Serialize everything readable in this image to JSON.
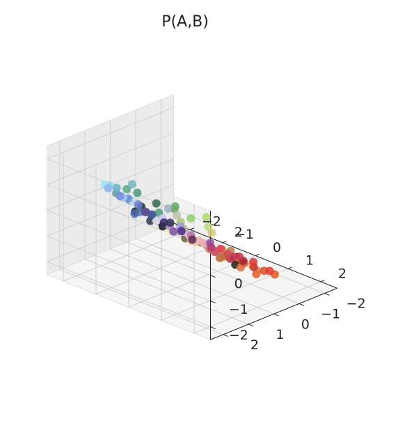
{
  "chart_data": {
    "type": "scatter3d",
    "title": "P(A,B)",
    "xlabel": "",
    "ylabel": "",
    "zlabel": "",
    "xlim": [
      -2.5,
      2.5
    ],
    "ylim": [
      -2.5,
      2.5
    ],
    "zlim": [
      -2.5,
      2.5
    ],
    "x_ticks": [
      "−2",
      "−1",
      "0",
      "1",
      "2"
    ],
    "y_ticks": [
      "−2",
      "−1",
      "0",
      "1",
      "2"
    ],
    "z_ticks": [
      "−2",
      "−1",
      "0",
      "1",
      "2"
    ],
    "grid": true,
    "x_tick_values": [
      -2,
      -1,
      0,
      1,
      2
    ],
    "y_tick_values": [
      -2,
      -1,
      0,
      1,
      2
    ],
    "z_tick_values": [
      -2,
      -1,
      0,
      1,
      2
    ],
    "points": [
      {
        "x": -0.6,
        "y": 1.8,
        "z": 1.5,
        "color": "#5fa98a"
      },
      {
        "x": -0.2,
        "y": 1.9,
        "z": 1.6,
        "color": "#4f9a80"
      },
      {
        "x": 0.3,
        "y": 1.8,
        "z": 1.4,
        "color": "#2f6a52"
      },
      {
        "x": 0.8,
        "y": 1.7,
        "z": 1.5,
        "color": "#62b070"
      },
      {
        "x": 1.2,
        "y": 1.6,
        "z": 1.2,
        "color": "#90cf70"
      },
      {
        "x": 1.6,
        "y": 1.5,
        "z": 1.4,
        "color": "#a8d86a"
      },
      {
        "x": -1.0,
        "y": 1.7,
        "z": 1.1,
        "color": "#5a9ea0"
      },
      {
        "x": 0.0,
        "y": 2.0,
        "z": 1.2,
        "color": "#1a3a30"
      },
      {
        "x": 0.6,
        "y": 2.0,
        "z": 0.9,
        "color": "#3f8a5a"
      },
      {
        "x": 1.0,
        "y": 1.9,
        "z": 0.7,
        "color": "#7ab060"
      },
      {
        "x": 1.4,
        "y": 1.8,
        "z": 0.5,
        "color": "#b8d470"
      },
      {
        "x": 1.8,
        "y": 1.6,
        "z": 0.3,
        "color": "#d0d88a"
      },
      {
        "x": 2.0,
        "y": 1.4,
        "z": 0.0,
        "color": "#c8c060"
      },
      {
        "x": 1.7,
        "y": 1.0,
        "z": 0.0,
        "color": "#9aa838"
      },
      {
        "x": -1.6,
        "y": 1.2,
        "z": 0.9,
        "color": "#8ad6e8"
      },
      {
        "x": -1.9,
        "y": 1.0,
        "z": 0.7,
        "color": "#a0e4f4"
      },
      {
        "x": -1.3,
        "y": 1.3,
        "z": 1.0,
        "color": "#6ab2c8"
      },
      {
        "x": -0.8,
        "y": 1.4,
        "z": 0.8,
        "color": "#4f8a9a"
      },
      {
        "x": -0.5,
        "y": 1.6,
        "z": 0.6,
        "color": "#14262a"
      },
      {
        "x": 0.1,
        "y": 1.5,
        "z": 0.5,
        "color": "#3a5a40"
      },
      {
        "x": 0.4,
        "y": 1.4,
        "z": 0.2,
        "color": "#f4f0c0"
      },
      {
        "x": 0.8,
        "y": 1.3,
        "z": 0.1,
        "color": "#6a6038"
      },
      {
        "x": 1.2,
        "y": 1.2,
        "z": 0.1,
        "color": "#a08a40"
      },
      {
        "x": -2.1,
        "y": 0.6,
        "z": 0.3,
        "color": "#8cb6f0"
      },
      {
        "x": -1.8,
        "y": 0.4,
        "z": 0.0,
        "color": "#a6c8f4"
      },
      {
        "x": -1.5,
        "y": 0.6,
        "z": 0.2,
        "color": "#6a92d8"
      },
      {
        "x": -1.2,
        "y": 0.8,
        "z": 0.3,
        "color": "#c4dcf4"
      },
      {
        "x": -0.9,
        "y": 0.9,
        "z": 0.1,
        "color": "#5a7aa8"
      },
      {
        "x": -0.5,
        "y": 1.0,
        "z": 0.0,
        "color": "#30384a"
      },
      {
        "x": -0.2,
        "y": 0.9,
        "z": -0.1,
        "color": "#1a1a20"
      },
      {
        "x": 0.2,
        "y": 0.9,
        "z": -0.1,
        "color": "#e4d8c8"
      },
      {
        "x": 0.6,
        "y": 0.8,
        "z": -0.3,
        "color": "#f0c8a0"
      },
      {
        "x": 1.0,
        "y": 0.7,
        "z": -0.3,
        "color": "#e0b070"
      },
      {
        "x": 1.4,
        "y": 0.6,
        "z": -0.5,
        "color": "#f0a850"
      },
      {
        "x": 1.8,
        "y": 0.5,
        "z": -0.6,
        "color": "#f5b860"
      },
      {
        "x": 2.0,
        "y": 0.2,
        "z": -0.8,
        "color": "#ffa830"
      },
      {
        "x": -2.2,
        "y": 0.0,
        "z": -0.3,
        "color": "#7e8ee0"
      },
      {
        "x": -1.8,
        "y": -0.2,
        "z": -0.5,
        "color": "#6a7ad0"
      },
      {
        "x": -1.3,
        "y": -0.1,
        "z": -0.6,
        "color": "#4a5aa8"
      },
      {
        "x": -0.9,
        "y": 0.0,
        "z": -0.5,
        "color": "#ccc6f0"
      },
      {
        "x": -0.6,
        "y": 0.1,
        "z": -0.6,
        "color": "#c2a0c8"
      },
      {
        "x": -0.2,
        "y": 0.0,
        "z": -0.7,
        "color": "#d0c0c8"
      },
      {
        "x": 0.2,
        "y": 0.0,
        "z": -0.8,
        "color": "#e8b8b8"
      },
      {
        "x": 0.6,
        "y": 0.1,
        "z": -0.9,
        "color": "#d88070"
      },
      {
        "x": 1.0,
        "y": 0.2,
        "z": -1.0,
        "color": "#c06840"
      },
      {
        "x": 1.4,
        "y": 0.1,
        "z": -1.1,
        "color": "#2a1a10"
      },
      {
        "x": -1.9,
        "y": -0.6,
        "z": -1.0,
        "color": "#6050a0"
      },
      {
        "x": -1.4,
        "y": -0.7,
        "z": -1.2,
        "color": "#3a2a6a"
      },
      {
        "x": -0.9,
        "y": -0.7,
        "z": -1.1,
        "color": "#a090e0"
      },
      {
        "x": -0.5,
        "y": -0.6,
        "z": -1.2,
        "color": "#b070a0"
      },
      {
        "x": -0.1,
        "y": -0.6,
        "z": -1.3,
        "color": "#f4b0c0"
      },
      {
        "x": 0.3,
        "y": -0.5,
        "z": -1.4,
        "color": "#d05060"
      },
      {
        "x": 0.7,
        "y": -0.6,
        "z": -1.5,
        "color": "#b03040"
      },
      {
        "x": 1.1,
        "y": -0.5,
        "z": -1.6,
        "color": "#e07040"
      },
      {
        "x": 1.5,
        "y": -0.6,
        "z": -1.7,
        "color": "#e86030"
      },
      {
        "x": -1.5,
        "y": -1.2,
        "z": -1.8,
        "color": "#8050a8"
      },
      {
        "x": -1.0,
        "y": -1.3,
        "z": -1.9,
        "color": "#602850"
      },
      {
        "x": -0.5,
        "y": -1.4,
        "z": -2.0,
        "color": "#b04070"
      },
      {
        "x": 0.0,
        "y": -1.4,
        "z": -2.0,
        "color": "#d04858"
      },
      {
        "x": 0.4,
        "y": -1.5,
        "z": -2.1,
        "color": "#a02030"
      },
      {
        "x": 0.8,
        "y": -1.4,
        "z": -2.1,
        "color": "#c03a30"
      },
      {
        "x": 1.2,
        "y": -1.3,
        "z": -2.0,
        "color": "#d85028"
      },
      {
        "x": 1.6,
        "y": -1.2,
        "z": -1.9,
        "color": "#e05a20"
      },
      {
        "x": -0.6,
        "y": -1.9,
        "z": -2.3,
        "color": "#e04050"
      },
      {
        "x": -0.1,
        "y": -2.0,
        "z": -2.4,
        "color": "#c83048"
      },
      {
        "x": 0.4,
        "y": -1.9,
        "z": -2.3,
        "color": "#d83a40"
      },
      {
        "x": 0.9,
        "y": -1.9,
        "z": -2.4,
        "color": "#e03a30"
      },
      {
        "x": -1.1,
        "y": 0.4,
        "z": -0.2,
        "color": "#3a3a5a"
      },
      {
        "x": -0.7,
        "y": 0.5,
        "z": -0.3,
        "color": "#f0e8f8"
      },
      {
        "x": -0.3,
        "y": 0.5,
        "z": -0.3,
        "color": "#9a9aa0"
      },
      {
        "x": 0.1,
        "y": 0.4,
        "z": -0.4,
        "color": "#705060"
      },
      {
        "x": 0.5,
        "y": 0.5,
        "z": -0.5,
        "color": "#e0c0a0"
      },
      {
        "x": 0.9,
        "y": 0.4,
        "z": -0.6,
        "color": "#a06030"
      },
      {
        "x": 1.3,
        "y": 0.4,
        "z": -0.7,
        "color": "#c07830"
      },
      {
        "x": -1.6,
        "y": 0.2,
        "z": -0.6,
        "color": "#4a68b0"
      },
      {
        "x": -0.3,
        "y": -0.3,
        "z": -1.0,
        "color": "#f8e0f0"
      },
      {
        "x": 0.2,
        "y": -0.3,
        "z": -1.1,
        "color": "#c89890"
      },
      {
        "x": 0.6,
        "y": -0.2,
        "z": -1.1,
        "color": "#a07080"
      },
      {
        "x": -0.9,
        "y": -0.3,
        "z": -0.8,
        "color": "#30305a"
      },
      {
        "x": -0.5,
        "y": 0.3,
        "z": 0.2,
        "color": "#9ab0c0"
      },
      {
        "x": 0.0,
        "y": 0.6,
        "z": 0.3,
        "color": "#c0c0b0"
      },
      {
        "x": 0.5,
        "y": 1.1,
        "z": 0.5,
        "color": "#a8c870"
      },
      {
        "x": 0.9,
        "y": 1.5,
        "z": 0.6,
        "color": "#c0c870"
      },
      {
        "x": 1.3,
        "y": 0.9,
        "z": 0.4,
        "color": "#d8c878"
      },
      {
        "x": -1.4,
        "y": 1.0,
        "z": 0.5,
        "color": "#5a8ab0"
      },
      {
        "x": -0.3,
        "y": 1.2,
        "z": 0.4,
        "color": "#2a4a48"
      },
      {
        "x": 1.1,
        "y": -0.1,
        "z": -0.8,
        "color": "#b88050"
      },
      {
        "x": -1.1,
        "y": -1.0,
        "z": -1.5,
        "color": "#4a2a8a"
      },
      {
        "x": 0.1,
        "y": -1.0,
        "z": -1.6,
        "color": "#e890a8"
      },
      {
        "x": 0.5,
        "y": -1.0,
        "z": -1.7,
        "color": "#b83048"
      },
      {
        "x": 0.9,
        "y": -0.9,
        "z": -1.7,
        "color": "#d06040"
      },
      {
        "x": 1.3,
        "y": -0.9,
        "z": -1.8,
        "color": "#e87040"
      },
      {
        "x": -0.3,
        "y": -1.1,
        "z": -1.6,
        "color": "#9050a0"
      },
      {
        "x": 0.3,
        "y": 1.7,
        "z": 1.0,
        "color": "#4a9a7a"
      },
      {
        "x": 1.5,
        "y": 1.3,
        "z": 0.9,
        "color": "#c0d880"
      },
      {
        "x": -0.9,
        "y": 1.2,
        "z": 1.3,
        "color": "#78b8c0"
      },
      {
        "x": 0.7,
        "y": 1.6,
        "z": 1.3,
        "color": "#70a860"
      }
    ]
  }
}
